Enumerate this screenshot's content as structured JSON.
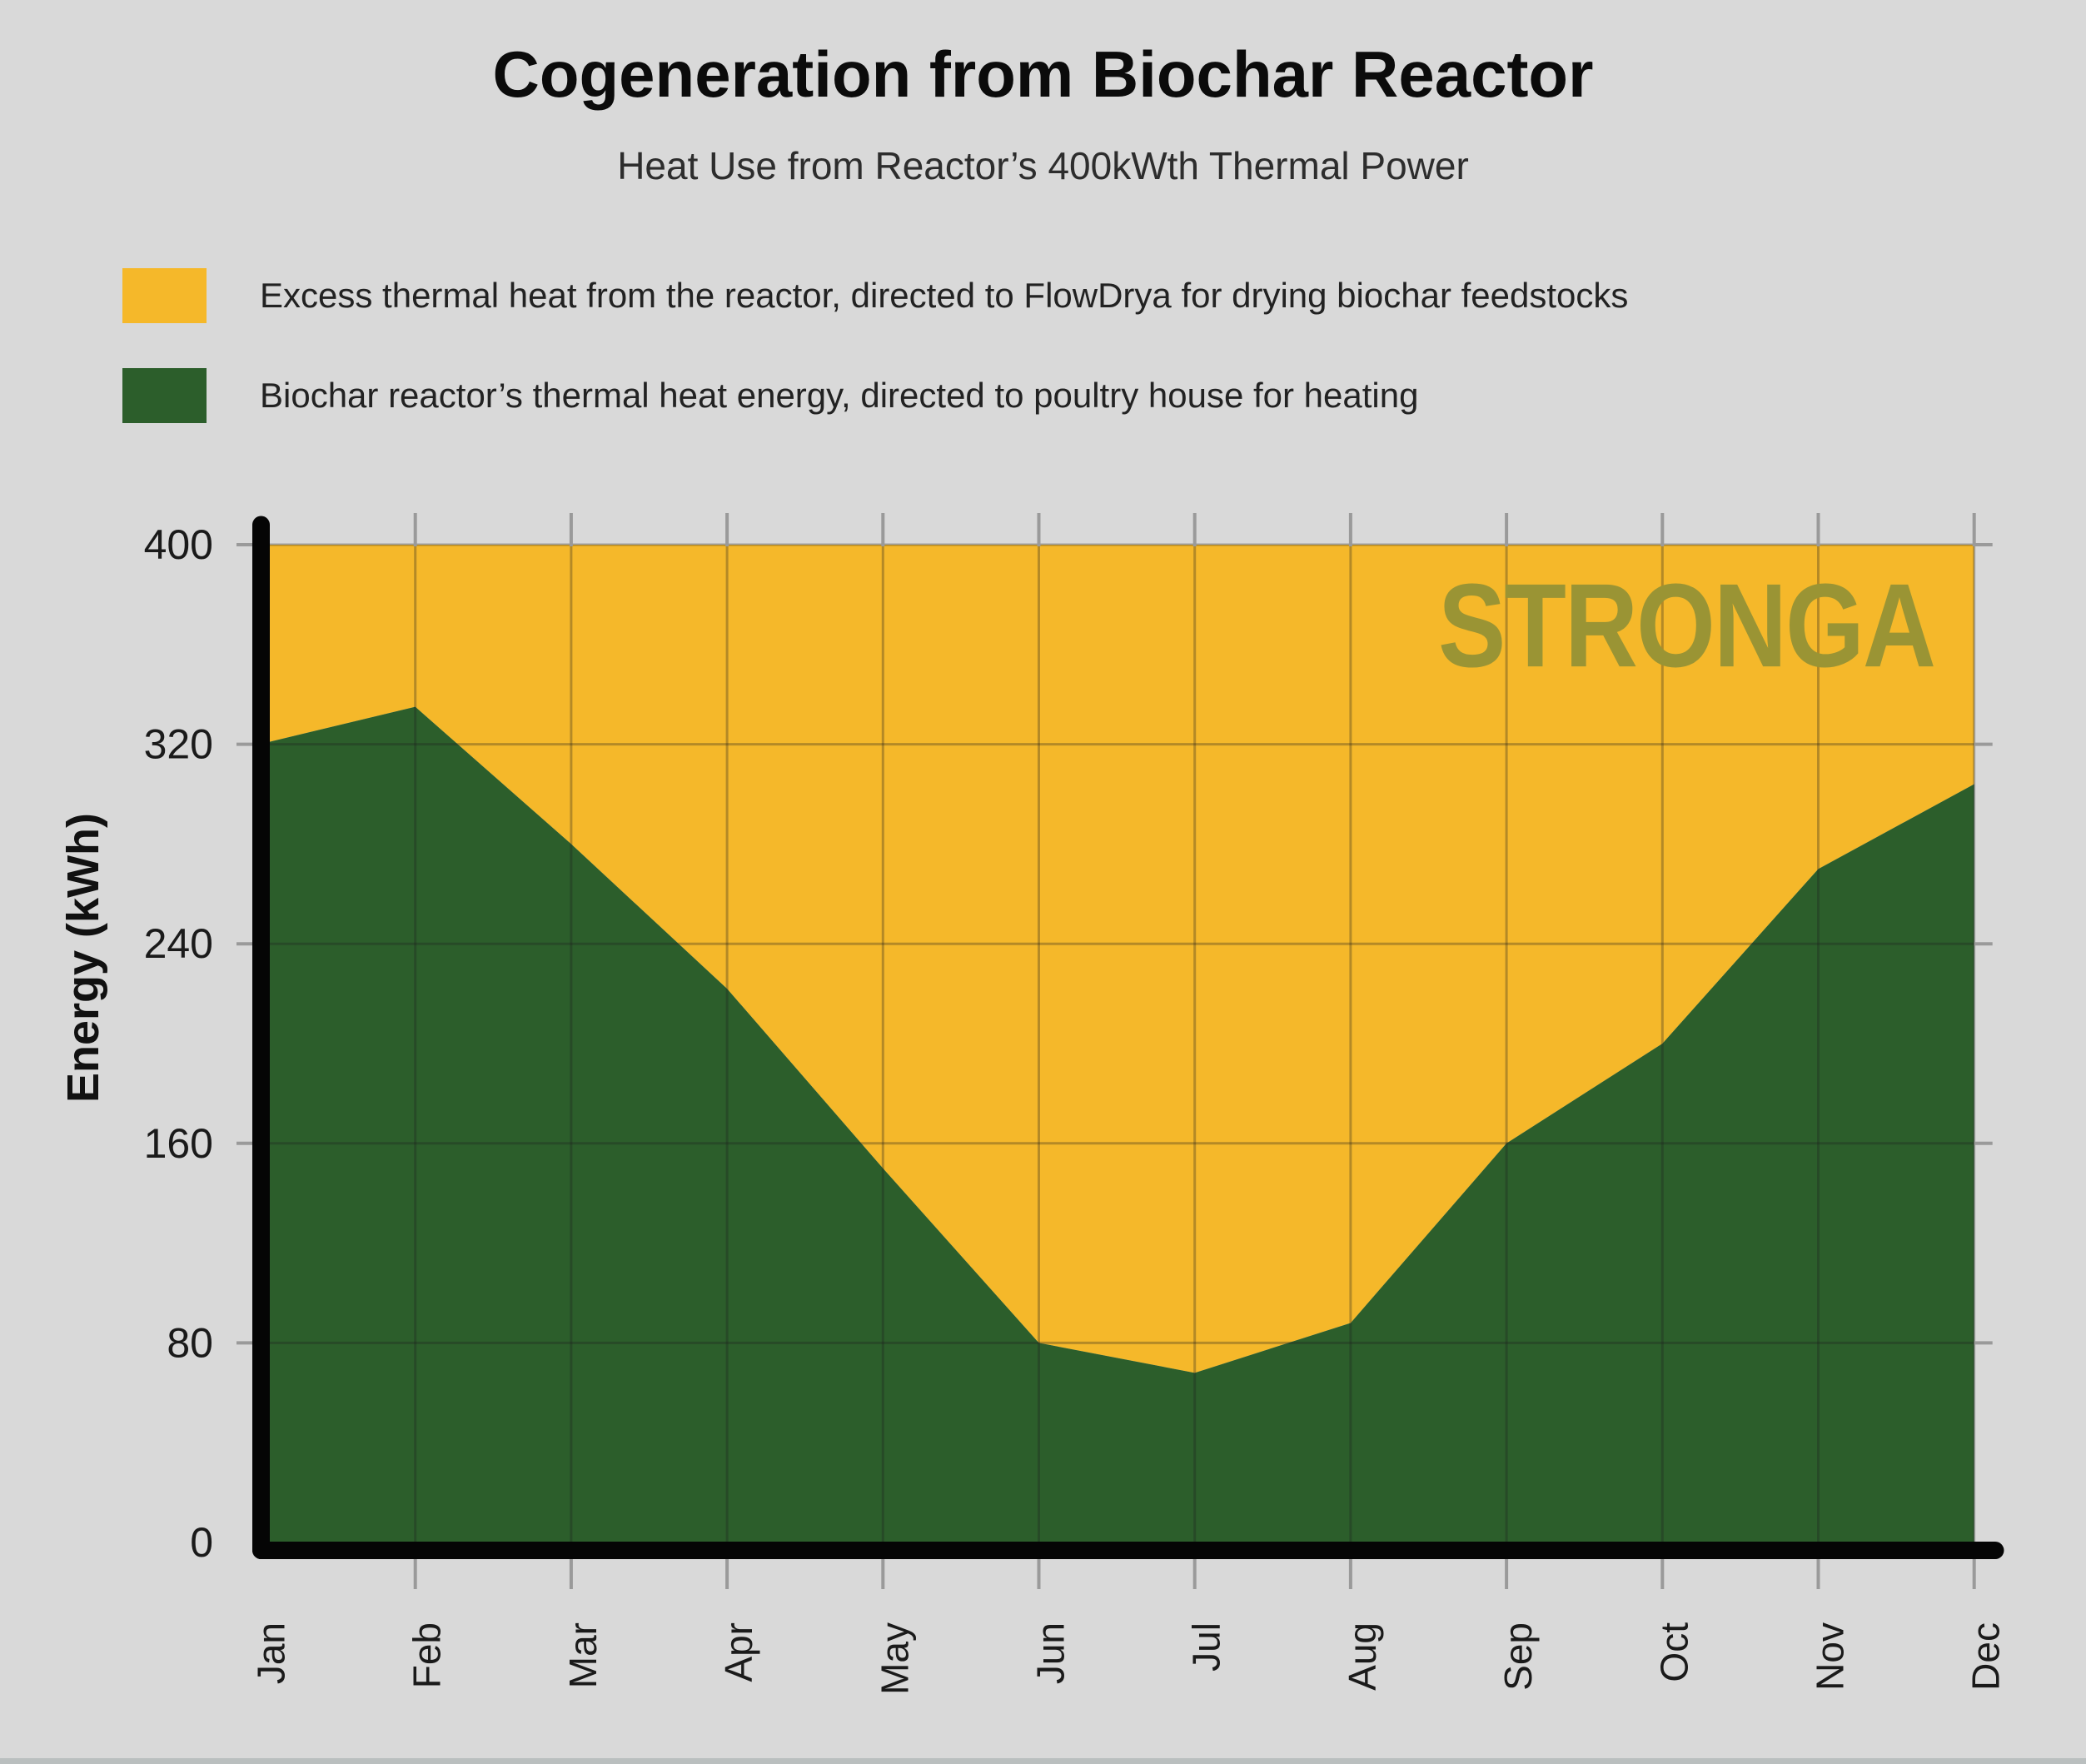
{
  "page": {
    "background": "#d9d9d9"
  },
  "title": "Cogeneration from Biochar Reactor",
  "subtitle": "Heat Use from Reactor’s 400kWth Thermal Power",
  "watermark": "STRONGA",
  "legend": {
    "items": [
      {
        "label": "Excess thermal heat from the reactor, directed to FlowDrya for drying biochar feedstocks",
        "color": "#F5B82A"
      },
      {
        "label": "Biochar reactor’s thermal heat energy, directed to poultry house for heating",
        "color": "#2C5E2B"
      }
    ]
  },
  "chart_data": {
    "type": "area",
    "stacked": true,
    "title": "Cogeneration from Biochar Reactor",
    "subtitle": "Heat Use from Reactor’s 400kWth Thermal Power",
    "x": [
      "Jan",
      "Feb",
      "Mar",
      "Apr",
      "May",
      "Jun",
      "Jul",
      "Aug",
      "Sep",
      "Oct",
      "Nov",
      "Dec"
    ],
    "xlabel": "",
    "ylabel": "Energy (kWh)",
    "ylim": [
      0,
      400
    ],
    "yticks": [
      0,
      80,
      160,
      240,
      320,
      400
    ],
    "grid": true,
    "legend_position": "top-left",
    "total_thermal_power_kwh": 400,
    "series": [
      {
        "name": "Biochar reactor’s thermal heat energy, directed to poultry house for heating",
        "color": "#2C5E2B",
        "values": [
          320,
          335,
          280,
          222,
          150,
          80,
          68,
          88,
          160,
          200,
          270,
          304
        ]
      },
      {
        "name": "Excess thermal heat from the reactor, directed to FlowDrya for drying biochar feedstocks",
        "color": "#F5B82A",
        "values": [
          80,
          65,
          120,
          178,
          250,
          320,
          332,
          312,
          240,
          200,
          130,
          96
        ]
      }
    ]
  },
  "colors": {
    "background": "#d9d9d9",
    "axis": "#050505",
    "tick": "#9a9a9a",
    "inner_grid": "rgba(30,30,30,0.30)",
    "tick_label": "#1a1a1a",
    "watermark": "#9A9434"
  }
}
